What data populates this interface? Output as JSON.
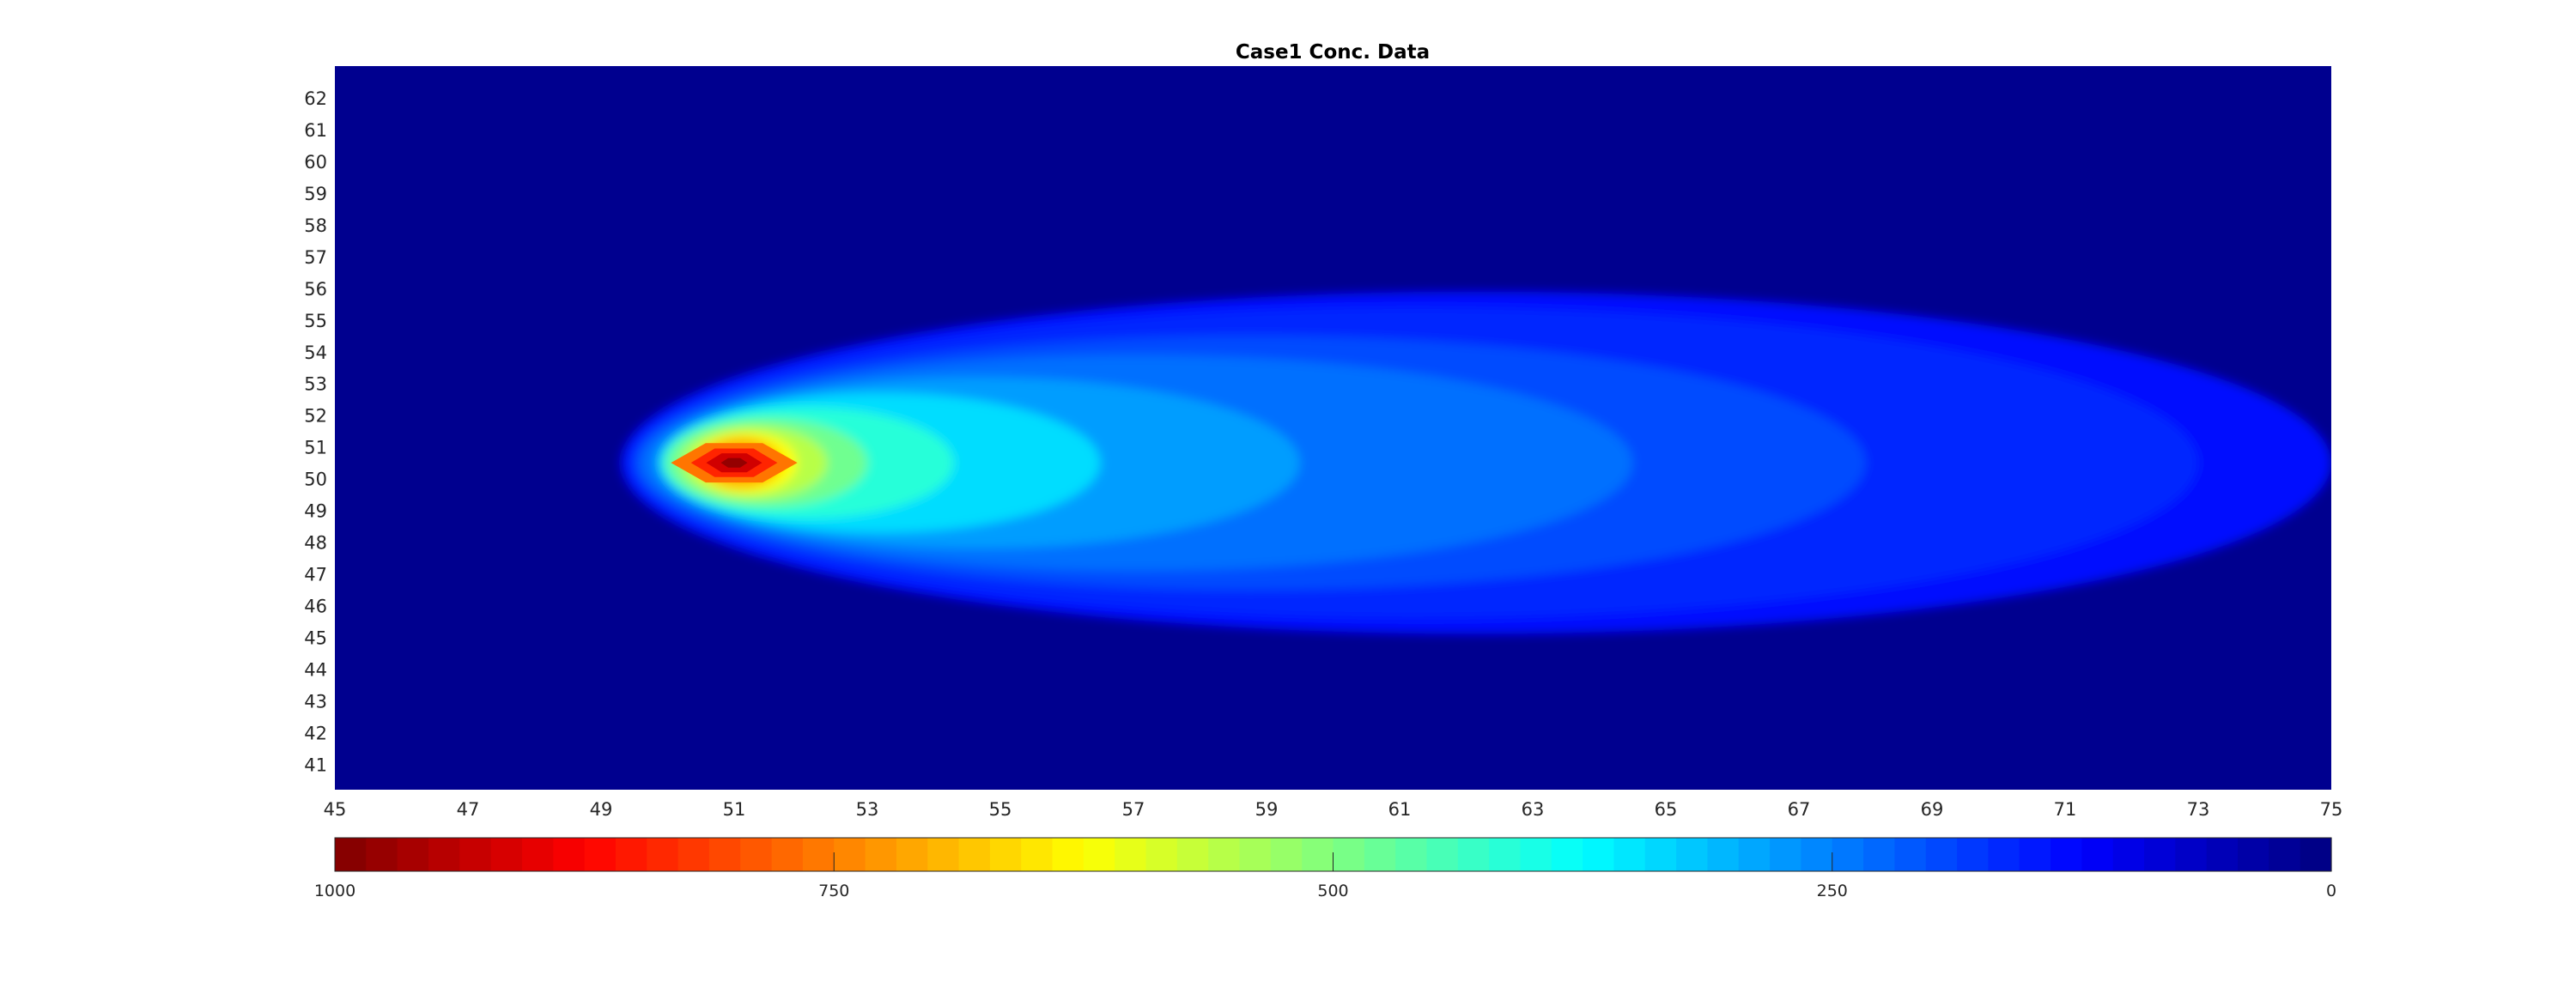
{
  "chart_data": {
    "type": "heatmap",
    "title": "Case1 Conc. Data",
    "xlabel": "",
    "ylabel": "",
    "xlim": [
      45,
      75
    ],
    "ylim": [
      40.2,
      63
    ],
    "x_ticks": [
      "45",
      "47",
      "49",
      "51",
      "53",
      "55",
      "57",
      "59",
      "61",
      "63",
      "65",
      "67",
      "69",
      "71",
      "73",
      "75"
    ],
    "y_ticks": [
      "62",
      "61",
      "60",
      "59",
      "58",
      "57",
      "56",
      "55",
      "54",
      "53",
      "52",
      "51",
      "50",
      "49",
      "48",
      "47",
      "46",
      "45",
      "44",
      "43",
      "42",
      "41"
    ],
    "grid": false,
    "colormap": "jet",
    "colormap_levels": 64,
    "colorbar": {
      "location": "bottom",
      "direction": "reversed",
      "range": [
        0,
        1000
      ],
      "ticks": [
        "1000",
        "750",
        "500",
        "250",
        "0"
      ]
    },
    "plume": {
      "source_x": 51,
      "source_y": 50.5,
      "peak_value": 1000,
      "extent_x": [
        49.3,
        75
      ],
      "extent_y": [
        45.5,
        56.6
      ],
      "shape": "elongated in +x direction"
    }
  },
  "colors": {
    "background": "#ffffff",
    "axis_background": "#00008f",
    "text": "#262626"
  }
}
